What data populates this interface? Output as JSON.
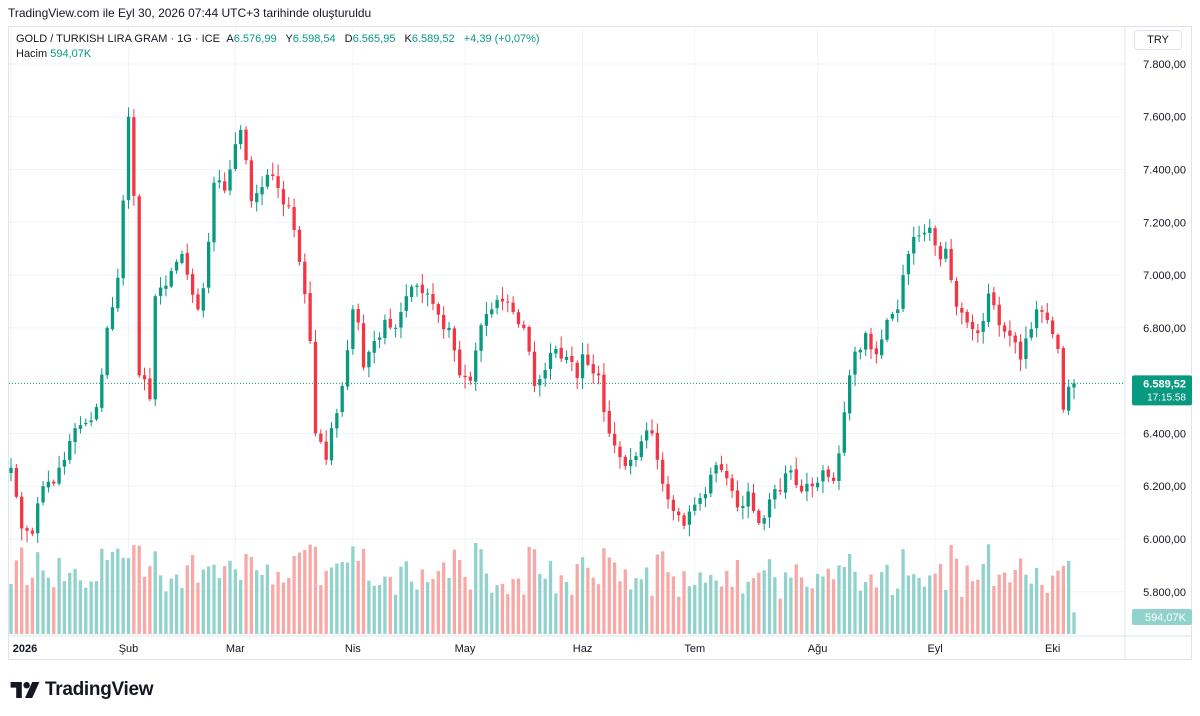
{
  "header": {
    "caption": "TradingView.com ile Eyl 30, 2026 07:44 UTC+3 tarihinde oluşturuldu"
  },
  "legend": {
    "symbol": "GOLD / TURKISH LIRA GRAM · 1G · ICE",
    "open_label": "A",
    "open": "6.576,99",
    "high_label": "Y",
    "high": "6.598,54",
    "low_label": "D",
    "low": "6.565,95",
    "close_label": "K",
    "close": "6.589,52",
    "change": "+4,39 (+0,07%)",
    "volume_label": "Hacim",
    "volume": "594,07K"
  },
  "currency_button": "TRY",
  "price_tag": {
    "price": "6.589,52",
    "countdown": "17:15:58"
  },
  "volume_tag": "594,07K",
  "brand": {
    "name": "TradingView"
  },
  "colors": {
    "up": "#089981",
    "down": "#f23645",
    "up_volume": "#92d2cc",
    "down_volume": "#f7a9a7",
    "grid": "#f0f3fa"
  },
  "chart_data": {
    "type": "candlestick",
    "title": "GOLD / TURKISH LIRA GRAM · 1G · ICE",
    "y_ticks": [
      "7.800,00",
      "7.600,00",
      "7.400,00",
      "7.200,00",
      "7.000,00",
      "6.800,00",
      "6.400,00",
      "6.200,00",
      "6.000,00",
      "5.800,00"
    ],
    "y_tick_values": [
      7800,
      7600,
      7400,
      7200,
      7000,
      6800,
      6400,
      6200,
      6000,
      5800
    ],
    "ylim": [
      5640,
      7940
    ],
    "x_ticks": [
      {
        "label": "2026",
        "index": 0
      },
      {
        "label": "Şub",
        "index": 22
      },
      {
        "label": "Mar",
        "index": 42
      },
      {
        "label": "Nis",
        "index": 64
      },
      {
        "label": "May",
        "index": 85
      },
      {
        "label": "Haz",
        "index": 107
      },
      {
        "label": "Tem",
        "index": 128
      },
      {
        "label": "Ağu",
        "index": 151
      },
      {
        "label": "Eyl",
        "index": 173
      },
      {
        "label": "Eki",
        "index": 195
      }
    ],
    "last_price": 6589.52,
    "volume_max_k": 1400,
    "anchors": [
      [
        0,
        6270
      ],
      [
        2,
        6040
      ],
      [
        4,
        6020
      ],
      [
        6,
        6200
      ],
      [
        8,
        6210
      ],
      [
        10,
        6300
      ],
      [
        12,
        6420
      ],
      [
        14,
        6440
      ],
      [
        16,
        6500
      ],
      [
        18,
        6800
      ],
      [
        20,
        6990
      ],
      [
        22,
        7600
      ],
      [
        23,
        7300
      ],
      [
        24,
        6620
      ],
      [
        26,
        6530
      ],
      [
        27,
        6920
      ],
      [
        29,
        6960
      ],
      [
        31,
        7050
      ],
      [
        32,
        7080
      ],
      [
        35,
        6870
      ],
      [
        36,
        6950
      ],
      [
        38,
        7350
      ],
      [
        40,
        7320
      ],
      [
        41,
        7400
      ],
      [
        43,
        7550
      ],
      [
        45,
        7280
      ],
      [
        48,
        7380
      ],
      [
        50,
        7330
      ],
      [
        52,
        7260
      ],
      [
        54,
        7050
      ],
      [
        56,
        6750
      ],
      [
        57,
        6400
      ],
      [
        59,
        6300
      ],
      [
        60,
        6420
      ],
      [
        62,
        6580
      ],
      [
        64,
        6870
      ],
      [
        65,
        6820
      ],
      [
        66,
        6650
      ],
      [
        68,
        6750
      ],
      [
        70,
        6830
      ],
      [
        72,
        6800
      ],
      [
        74,
        6920
      ],
      [
        76,
        6960
      ],
      [
        78,
        6930
      ],
      [
        80,
        6850
      ],
      [
        82,
        6800
      ],
      [
        84,
        6620
      ],
      [
        86,
        6600
      ],
      [
        88,
        6810
      ],
      [
        90,
        6870
      ],
      [
        92,
        6900
      ],
      [
        94,
        6860
      ],
      [
        96,
        6800
      ],
      [
        98,
        6580
      ],
      [
        100,
        6640
      ],
      [
        102,
        6720
      ],
      [
        104,
        6690
      ],
      [
        106,
        6610
      ],
      [
        107,
        6700
      ],
      [
        108,
        6660
      ],
      [
        110,
        6620
      ],
      [
        112,
        6400
      ],
      [
        114,
        6310
      ],
      [
        116,
        6300
      ],
      [
        118,
        6370
      ],
      [
        120,
        6400
      ],
      [
        121,
        6300
      ],
      [
        123,
        6150
      ],
      [
        126,
        6050
      ],
      [
        128,
        6130
      ],
      [
        130,
        6170
      ],
      [
        132,
        6280
      ],
      [
        134,
        6230
      ],
      [
        136,
        6120
      ],
      [
        138,
        6180
      ],
      [
        140,
        6060
      ],
      [
        142,
        6150
      ],
      [
        144,
        6180
      ],
      [
        146,
        6260
      ],
      [
        148,
        6180
      ],
      [
        150,
        6200
      ],
      [
        152,
        6260
      ],
      [
        154,
        6220
      ],
      [
        156,
        6480
      ],
      [
        157,
        6620
      ],
      [
        158,
        6710
      ],
      [
        160,
        6780
      ],
      [
        162,
        6700
      ],
      [
        164,
        6830
      ],
      [
        166,
        6870
      ],
      [
        167,
        7000
      ],
      [
        168,
        7080
      ],
      [
        170,
        7150
      ],
      [
        172,
        7180
      ],
      [
        174,
        7060
      ],
      [
        175,
        7100
      ],
      [
        177,
        6880
      ],
      [
        179,
        6820
      ],
      [
        181,
        6780
      ],
      [
        183,
        6930
      ],
      [
        185,
        6810
      ],
      [
        187,
        6770
      ],
      [
        189,
        6680
      ],
      [
        190,
        6760
      ],
      [
        192,
        6870
      ],
      [
        194,
        6830
      ],
      [
        196,
        6720
      ],
      [
        197,
        6490
      ],
      [
        198,
        6577
      ],
      [
        199,
        6590
      ]
    ],
    "x_count": 200
  }
}
